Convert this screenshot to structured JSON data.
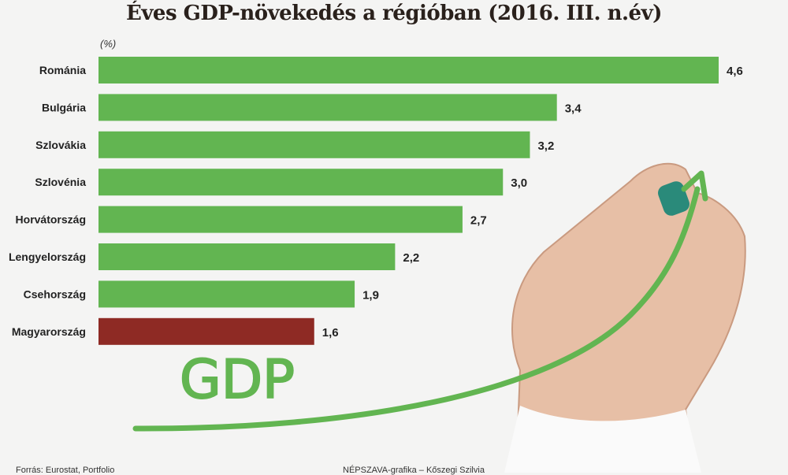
{
  "chart_data": {
    "type": "bar",
    "orientation": "horizontal",
    "title": "Éves GDP-növekedés a régióban (2016. III. n.év)",
    "unit_label": "(%)",
    "categories": [
      "Románia",
      "Bulgária",
      "Szlovákia",
      "Szlovénia",
      "Horvátország",
      "Lengyelország",
      "Csehország",
      "Magyarország"
    ],
    "values": [
      4.6,
      3.4,
      3.2,
      3.0,
      2.7,
      2.2,
      1.9,
      1.6
    ],
    "value_labels": [
      "4,6",
      "3,4",
      "3,2",
      "3,0",
      "2,7",
      "2,2",
      "1,9",
      "1,6"
    ],
    "colors": [
      "#62b551",
      "#62b551",
      "#62b551",
      "#62b551",
      "#62b551",
      "#62b551",
      "#62b551",
      "#8e2a24"
    ],
    "xlim": [
      0,
      4.6
    ],
    "grid": false
  },
  "illustration": {
    "text": "GDP",
    "color": "#62b551"
  },
  "footer": {
    "source": "Forrás: Eurostat, Portfolio",
    "credit": "NÉPSZAVA-grafika – Kőszegi Szilvia"
  }
}
